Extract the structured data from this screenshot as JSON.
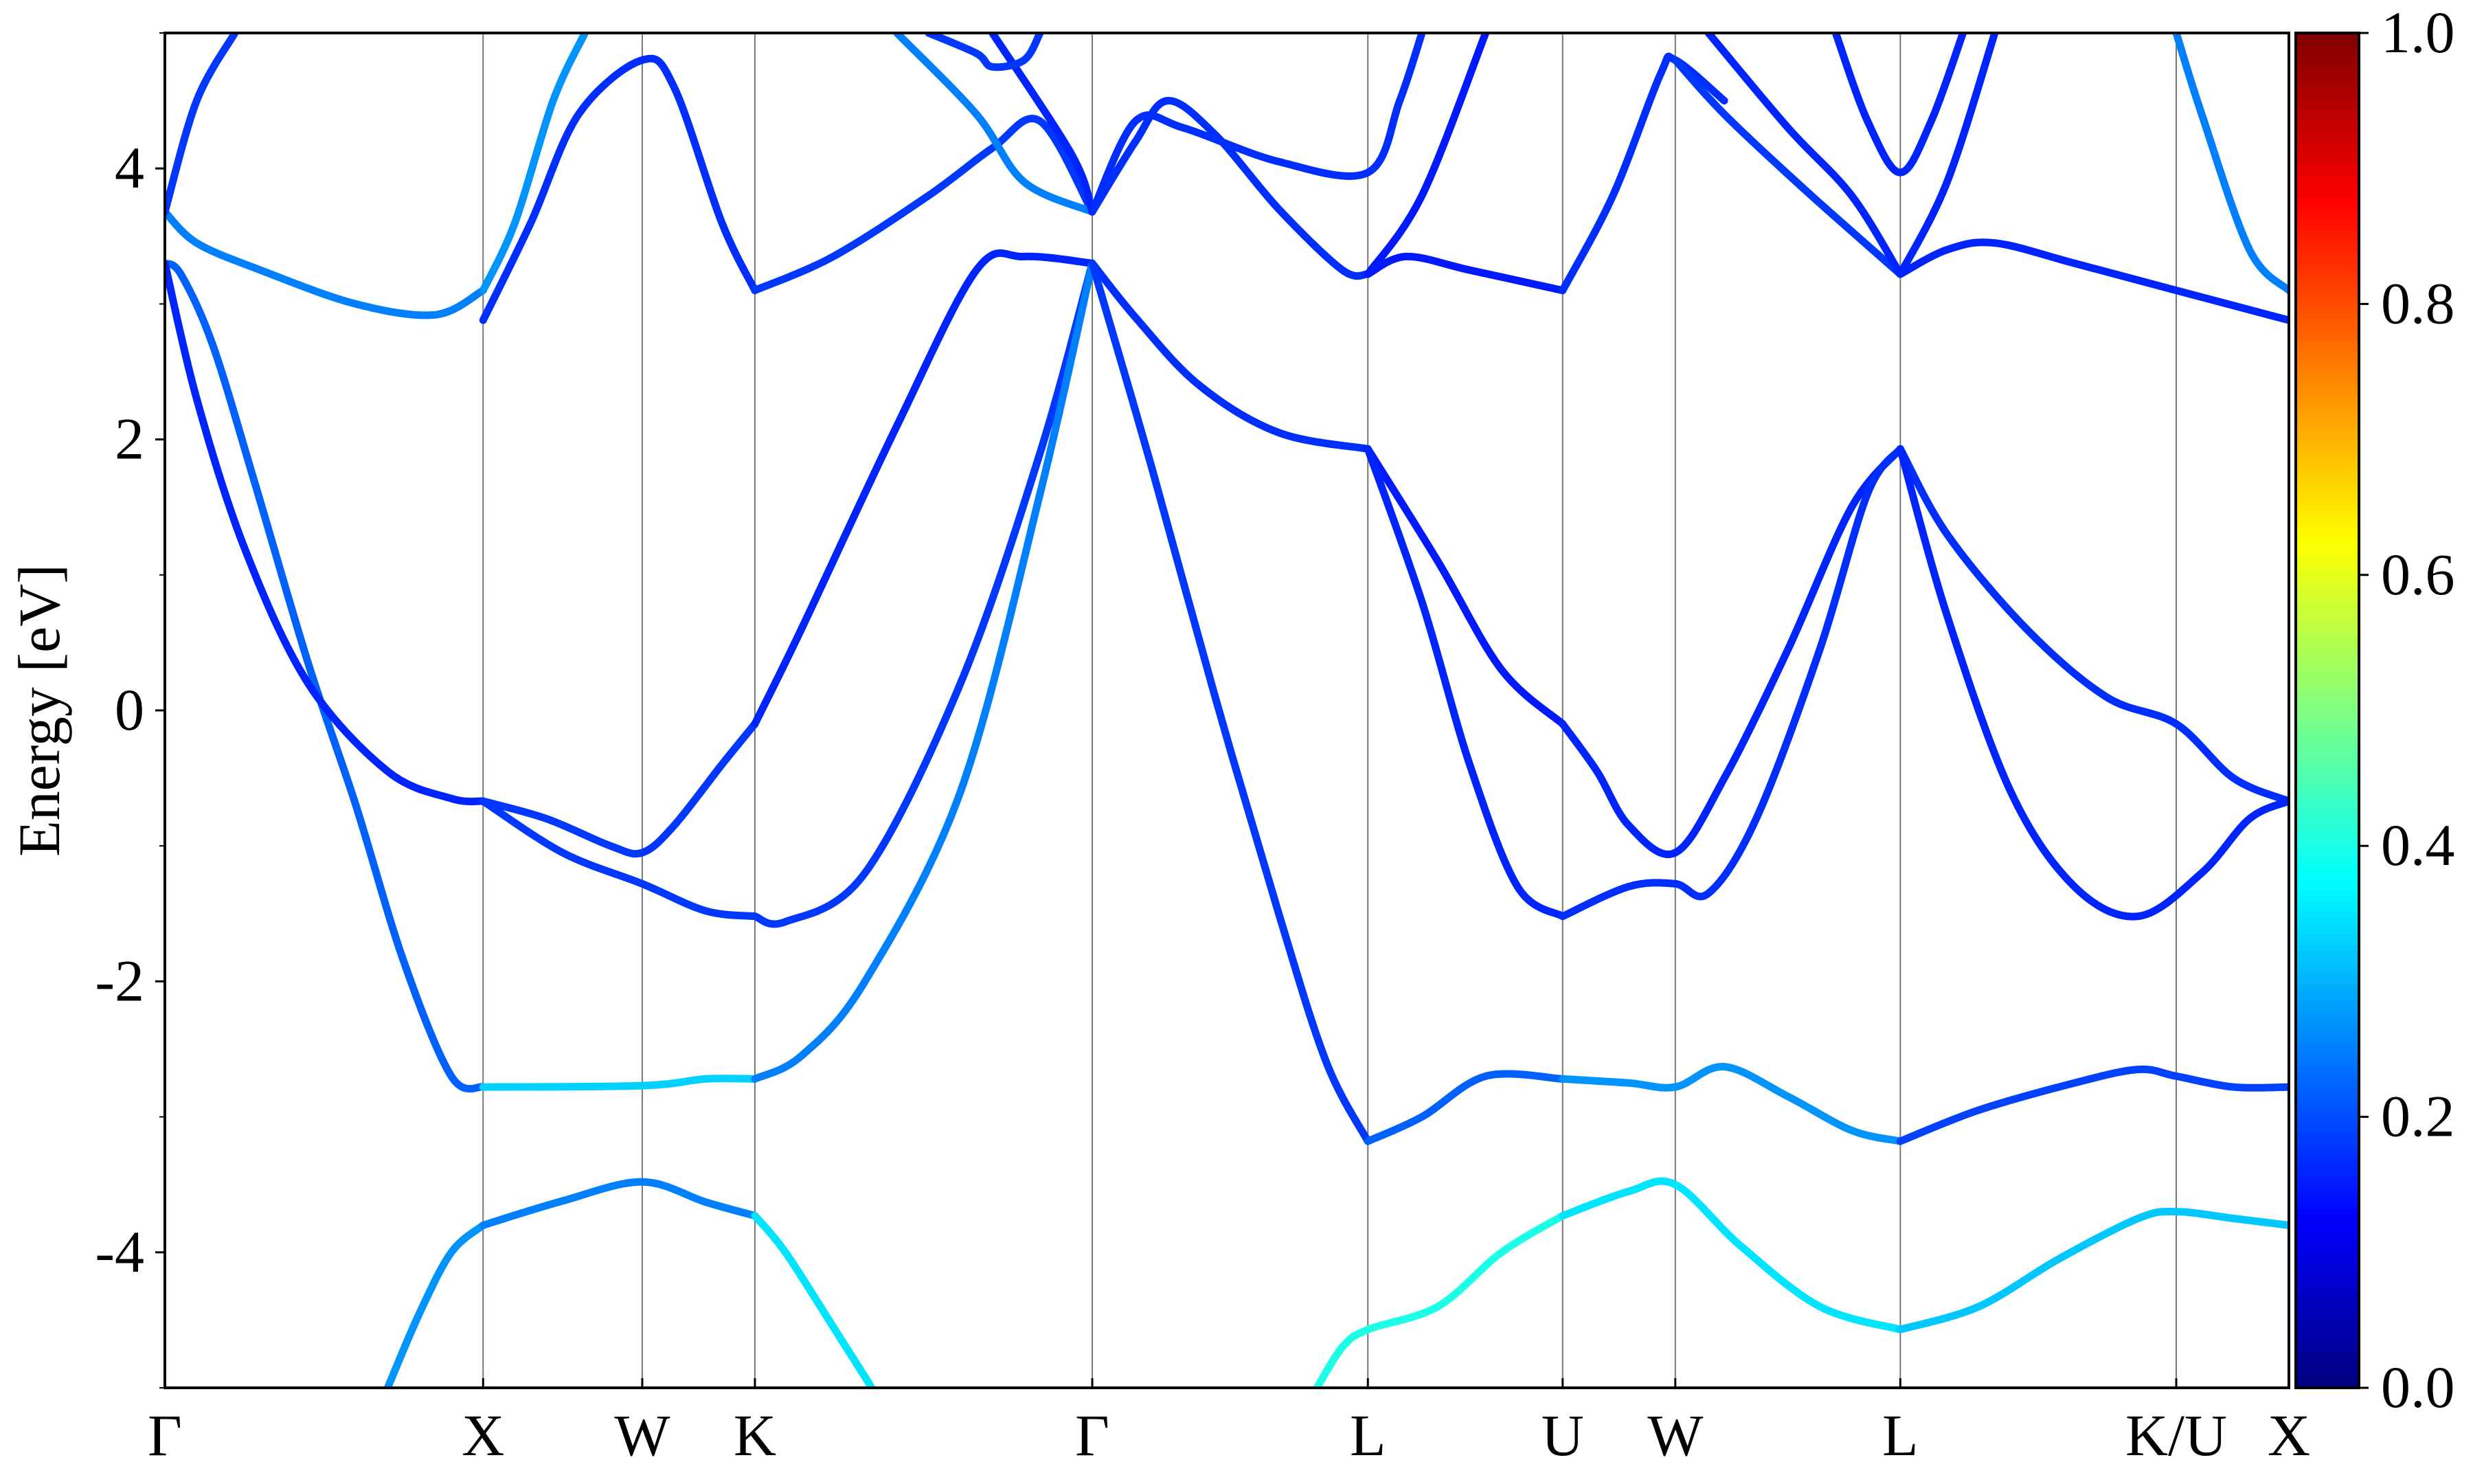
{
  "chart_data": {
    "type": "line",
    "ylabel": "Energy [eV]",
    "ylim": [
      -5,
      5
    ],
    "yticks": [
      {
        "value": 4,
        "label": "4"
      },
      {
        "value": 2,
        "label": "2"
      },
      {
        "value": 0,
        "label": "0"
      },
      {
        "value": -2,
        "label": "-2"
      },
      {
        "value": -4,
        "label": "-4"
      }
    ],
    "kpath": [
      {
        "label": "Γ",
        "k": 0.0
      },
      {
        "label": "X",
        "k": 1.0
      },
      {
        "label": "W",
        "k": 1.5
      },
      {
        "label": "K",
        "k": 1.854
      },
      {
        "label": "Γ",
        "k": 2.914
      },
      {
        "label": "L",
        "k": 3.78
      },
      {
        "label": "U",
        "k": 4.392
      },
      {
        "label": "W",
        "k": 4.746
      },
      {
        "label": "L",
        "k": 5.453
      },
      {
        "label": "K/U",
        "k": 6.32
      },
      {
        "label": "X",
        "k": 6.674
      }
    ],
    "colorbar": {
      "range": [
        0,
        1
      ],
      "colormap": "jet",
      "ticks": [
        {
          "value": 0.0,
          "label": "0.0"
        },
        {
          "value": 0.2,
          "label": "0.2"
        },
        {
          "value": 0.4,
          "label": "0.4"
        },
        {
          "value": 0.6,
          "label": "0.6"
        },
        {
          "value": 0.8,
          "label": "0.8"
        },
        {
          "value": 1.0,
          "label": "1.0"
        }
      ]
    },
    "series": [
      {
        "weight": 0.25,
        "points": [
          [
            0,
            3.68
          ],
          [
            0.1,
            3.45
          ],
          [
            0.3,
            3.25
          ],
          [
            0.6,
            3.0
          ],
          [
            0.85,
            2.92
          ],
          [
            1.0,
            3.1
          ]
        ]
      },
      {
        "weight": 0.22,
        "points": [
          [
            0,
            3.3
          ],
          [
            0.05,
            3.22
          ],
          [
            0.15,
            2.7
          ],
          [
            0.28,
            1.7
          ],
          [
            0.45,
            0.35
          ],
          [
            0.6,
            -0.7
          ],
          [
            0.75,
            -1.85
          ],
          [
            0.9,
            -2.7
          ],
          [
            1.0,
            -2.78
          ]
        ]
      },
      {
        "weight": 0.16,
        "points": [
          [
            0,
            3.3
          ],
          [
            0.1,
            2.3
          ],
          [
            0.25,
            1.2
          ],
          [
            0.45,
            0.2
          ],
          [
            0.7,
            -0.45
          ],
          [
            0.9,
            -0.65
          ],
          [
            1.0,
            -0.67
          ]
        ]
      },
      {
        "weight": 0.18,
        "points": [
          [
            0,
            3.68
          ],
          [
            0.1,
            4.5
          ],
          [
            0.22,
            5.0
          ]
        ]
      },
      {
        "weight": 0.27,
        "points": [
          [
            1.0,
            3.1
          ],
          [
            1.1,
            3.6
          ],
          [
            1.22,
            4.5
          ],
          [
            1.32,
            5.0
          ]
        ]
      },
      {
        "weight": 0.17,
        "points": [
          [
            1.0,
            2.88
          ],
          [
            1.15,
            3.6
          ],
          [
            1.3,
            4.4
          ],
          [
            1.5,
            4.8
          ],
          [
            1.6,
            4.6
          ],
          [
            1.75,
            3.6
          ],
          [
            1.854,
            3.1
          ]
        ]
      },
      {
        "weight": 0.18,
        "points": [
          [
            1.0,
            -0.67
          ],
          [
            1.2,
            -0.8
          ],
          [
            1.4,
            -1.0
          ],
          [
            1.5,
            -1.05
          ],
          [
            1.6,
            -0.85
          ],
          [
            1.75,
            -0.4
          ],
          [
            1.854,
            -0.1
          ]
        ]
      },
      {
        "weight": 0.18,
        "points": [
          [
            1.0,
            -0.67
          ],
          [
            1.25,
            -1.05
          ],
          [
            1.5,
            -1.28
          ],
          [
            1.7,
            -1.48
          ],
          [
            1.854,
            -1.52
          ]
        ]
      },
      {
        "weight": 0.33,
        "points": [
          [
            1.0,
            -2.78
          ],
          [
            1.5,
            -2.77
          ],
          [
            1.7,
            -2.72
          ],
          [
            1.854,
            -2.72
          ]
        ]
      },
      {
        "weight": 0.27,
        "points": [
          [
            0.7,
            -5.0
          ],
          [
            0.8,
            -4.45
          ],
          [
            0.9,
            -4.0
          ],
          [
            1.0,
            -3.8
          ]
        ]
      },
      {
        "weight": 0.25,
        "points": [
          [
            1.0,
            -3.8
          ],
          [
            1.25,
            -3.62
          ],
          [
            1.5,
            -3.48
          ],
          [
            1.7,
            -3.63
          ],
          [
            1.854,
            -3.73
          ]
        ]
      },
      {
        "weight": 0.35,
        "points": [
          [
            1.854,
            -3.73
          ],
          [
            1.95,
            -4.0
          ],
          [
            2.1,
            -4.55
          ],
          [
            2.2,
            -4.92
          ],
          [
            2.22,
            -5.0
          ]
        ]
      },
      {
        "weight": 0.18,
        "points": [
          [
            1.854,
            3.1
          ],
          [
            2.1,
            3.35
          ],
          [
            2.4,
            3.8
          ],
          [
            2.6,
            4.15
          ],
          [
            2.75,
            4.35
          ],
          [
            2.914,
            3.68
          ]
        ]
      },
      {
        "weight": 0.16,
        "points": [
          [
            1.854,
            -0.1
          ],
          [
            2.0,
            0.6
          ],
          [
            2.3,
            2.1
          ],
          [
            2.55,
            3.25
          ],
          [
            2.7,
            3.35
          ],
          [
            2.914,
            3.3
          ]
        ]
      },
      {
        "weight": 0.18,
        "points": [
          [
            1.854,
            -1.52
          ],
          [
            1.95,
            -1.56
          ],
          [
            2.2,
            -1.2
          ],
          [
            2.5,
            0.2
          ],
          [
            2.75,
            1.9
          ],
          [
            2.914,
            3.3
          ]
        ]
      },
      {
        "weight": 0.25,
        "points": [
          [
            1.854,
            -2.72
          ],
          [
            2.0,
            -2.55
          ],
          [
            2.2,
            -2.0
          ],
          [
            2.5,
            -0.6
          ],
          [
            2.75,
            1.6
          ],
          [
            2.914,
            3.3
          ]
        ]
      },
      {
        "weight": 0.25,
        "points": [
          [
            2.3,
            5.0
          ],
          [
            2.55,
            4.4
          ],
          [
            2.7,
            3.9
          ],
          [
            2.914,
            3.68
          ]
        ]
      },
      {
        "weight": 0.16,
        "points": [
          [
            2.6,
            5.0
          ],
          [
            2.85,
            4.1
          ],
          [
            2.914,
            3.68
          ]
        ]
      },
      {
        "weight": 0.18,
        "points": [
          [
            2.4,
            5.0
          ],
          [
            2.55,
            4.85
          ],
          [
            2.6,
            4.75
          ],
          [
            2.7,
            4.8
          ],
          [
            2.75,
            5.0
          ]
        ]
      },
      {
        "weight": 0.17,
        "points": [
          [
            2.914,
            3.68
          ],
          [
            3.05,
            4.35
          ],
          [
            3.2,
            4.3
          ],
          [
            3.5,
            4.05
          ],
          [
            3.78,
            3.97
          ],
          [
            3.88,
            4.5
          ],
          [
            3.95,
            5.0
          ]
        ]
      },
      {
        "weight": 0.17,
        "points": [
          [
            2.914,
            3.68
          ],
          [
            3.05,
            4.2
          ],
          [
            3.15,
            4.5
          ],
          [
            3.3,
            4.25
          ],
          [
            3.5,
            3.7
          ],
          [
            3.7,
            3.25
          ],
          [
            3.78,
            3.22
          ]
        ]
      },
      {
        "weight": 0.17,
        "points": [
          [
            2.914,
            3.3
          ],
          [
            3.05,
            2.9
          ],
          [
            3.25,
            2.4
          ],
          [
            3.5,
            2.05
          ],
          [
            3.78,
            1.93
          ]
        ]
      },
      {
        "weight": 0.18,
        "points": [
          [
            2.914,
            3.3
          ],
          [
            3.1,
            1.8
          ],
          [
            3.3,
            0.1
          ],
          [
            3.5,
            -1.5
          ],
          [
            3.65,
            -2.6
          ],
          [
            3.78,
            -3.18
          ]
        ]
      },
      {
        "weight": 0.15,
        "points": [
          [
            3.78,
            3.22
          ],
          [
            3.9,
            3.35
          ],
          [
            4.1,
            3.25
          ],
          [
            4.392,
            3.1
          ]
        ]
      },
      {
        "weight": 0.15,
        "points": [
          [
            3.78,
            3.22
          ],
          [
            3.95,
            3.8
          ],
          [
            4.15,
            5.0
          ]
        ]
      },
      {
        "weight": 0.15,
        "points": [
          [
            3.78,
            1.93
          ],
          [
            4.0,
            1.1
          ],
          [
            4.2,
            0.3
          ],
          [
            4.392,
            -0.1
          ]
        ]
      },
      {
        "weight": 0.16,
        "points": [
          [
            3.78,
            1.93
          ],
          [
            3.95,
            0.8
          ],
          [
            4.1,
            -0.4
          ],
          [
            4.25,
            -1.3
          ],
          [
            4.392,
            -1.52
          ]
        ]
      },
      {
        "weight": 0.22,
        "points": [
          [
            3.78,
            -3.18
          ],
          [
            3.95,
            -3.0
          ],
          [
            4.15,
            -2.7
          ],
          [
            4.392,
            -2.72
          ]
        ]
      },
      {
        "weight": 0.4,
        "points": [
          [
            3.62,
            -5.0
          ],
          [
            3.7,
            -4.7
          ],
          [
            3.78,
            -4.57
          ],
          [
            4.0,
            -4.4
          ],
          [
            4.2,
            -4.0
          ],
          [
            4.392,
            -3.73
          ]
        ]
      },
      {
        "weight": 0.17,
        "points": [
          [
            4.392,
            3.1
          ],
          [
            4.55,
            3.8
          ],
          [
            4.7,
            4.7
          ],
          [
            4.746,
            4.8
          ],
          [
            4.9,
            4.5
          ]
        ]
      },
      {
        "weight": 0.16,
        "points": [
          [
            4.392,
            -0.1
          ],
          [
            4.5,
            -0.45
          ],
          [
            4.6,
            -0.85
          ],
          [
            4.746,
            -1.05
          ],
          [
            4.9,
            -0.5
          ],
          [
            5.1,
            0.45
          ],
          [
            5.3,
            1.5
          ],
          [
            5.453,
            1.93
          ]
        ]
      },
      {
        "weight": 0.17,
        "points": [
          [
            4.392,
            -1.52
          ],
          [
            4.6,
            -1.3
          ],
          [
            4.746,
            -1.28
          ],
          [
            4.85,
            -1.35
          ],
          [
            5.0,
            -0.8
          ],
          [
            5.2,
            0.45
          ],
          [
            5.35,
            1.6
          ],
          [
            5.453,
            1.93
          ]
        ]
      },
      {
        "weight": 0.27,
        "points": [
          [
            4.392,
            -2.72
          ],
          [
            4.6,
            -2.75
          ],
          [
            4.746,
            -2.78
          ],
          [
            4.9,
            -2.63
          ],
          [
            5.1,
            -2.85
          ],
          [
            5.3,
            -3.1
          ],
          [
            5.453,
            -3.18
          ]
        ]
      },
      {
        "weight": 0.35,
        "points": [
          [
            4.392,
            -3.73
          ],
          [
            4.6,
            -3.55
          ],
          [
            4.746,
            -3.5
          ],
          [
            4.95,
            -3.95
          ],
          [
            5.2,
            -4.4
          ],
          [
            5.453,
            -4.57
          ]
        ]
      },
      {
        "weight": 0.18,
        "points": [
          [
            4.746,
            4.8
          ],
          [
            4.9,
            4.4
          ],
          [
            5.15,
            3.85
          ],
          [
            5.453,
            3.22
          ]
        ]
      },
      {
        "weight": 0.16,
        "points": [
          [
            4.85,
            5.0
          ],
          [
            5.1,
            4.3
          ],
          [
            5.3,
            3.8
          ],
          [
            5.453,
            3.22
          ]
        ]
      },
      {
        "weight": 0.16,
        "points": [
          [
            5.25,
            5.0
          ],
          [
            5.35,
            4.35
          ],
          [
            5.453,
            3.97
          ],
          [
            5.55,
            4.35
          ],
          [
            5.65,
            5.0
          ]
        ]
      },
      {
        "weight": 0.16,
        "points": [
          [
            5.453,
            3.22
          ],
          [
            5.6,
            3.4
          ],
          [
            5.75,
            3.45
          ],
          [
            6.0,
            3.3
          ],
          [
            6.32,
            3.1
          ],
          [
            6.674,
            2.88
          ]
        ]
      },
      {
        "weight": 0.16,
        "points": [
          [
            5.453,
            3.22
          ],
          [
            5.6,
            3.9
          ],
          [
            5.75,
            5.0
          ]
        ]
      },
      {
        "weight": 0.17,
        "points": [
          [
            5.453,
            1.93
          ],
          [
            5.6,
            1.3
          ],
          [
            5.85,
            0.6
          ],
          [
            6.1,
            0.1
          ],
          [
            6.32,
            -0.1
          ],
          [
            6.5,
            -0.5
          ],
          [
            6.674,
            -0.67
          ]
        ]
      },
      {
        "weight": 0.16,
        "points": [
          [
            5.453,
            1.93
          ],
          [
            5.6,
            0.7
          ],
          [
            5.8,
            -0.6
          ],
          [
            6.0,
            -1.3
          ],
          [
            6.2,
            -1.52
          ],
          [
            6.4,
            -1.2
          ],
          [
            6.55,
            -0.8
          ],
          [
            6.674,
            -0.67
          ]
        ]
      },
      {
        "weight": 0.19,
        "points": [
          [
            5.453,
            -3.18
          ],
          [
            5.7,
            -2.95
          ],
          [
            6.0,
            -2.75
          ],
          [
            6.2,
            -2.65
          ],
          [
            6.32,
            -2.7
          ],
          [
            6.5,
            -2.78
          ],
          [
            6.674,
            -2.78
          ]
        ]
      },
      {
        "weight": 0.32,
        "points": [
          [
            5.453,
            -4.57
          ],
          [
            5.7,
            -4.4
          ],
          [
            5.95,
            -4.05
          ],
          [
            6.2,
            -3.75
          ],
          [
            6.32,
            -3.7
          ],
          [
            6.5,
            -3.75
          ],
          [
            6.674,
            -3.8
          ]
        ]
      },
      {
        "weight": 0.25,
        "points": [
          [
            6.32,
            5.0
          ],
          [
            6.4,
            4.4
          ],
          [
            6.55,
            3.4
          ],
          [
            6.674,
            3.1
          ]
        ]
      }
    ]
  }
}
